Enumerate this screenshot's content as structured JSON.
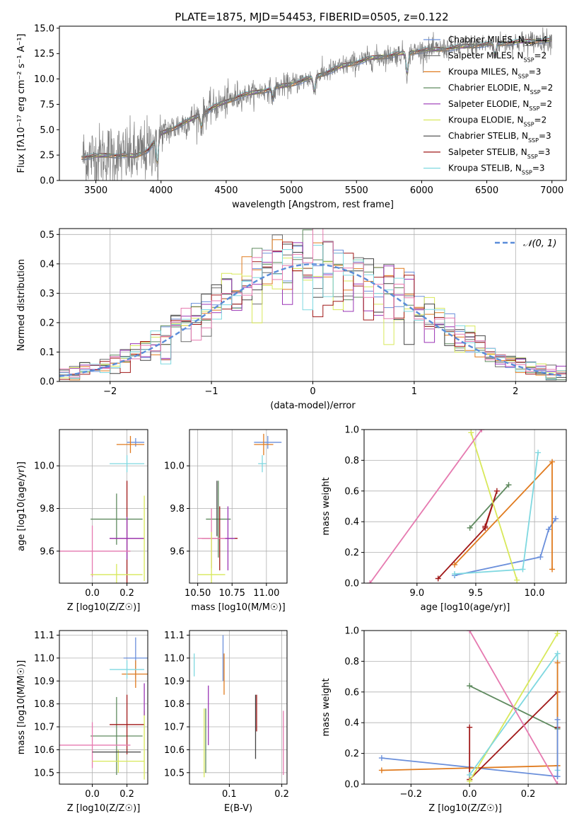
{
  "colors": {
    "chabrier_miles": "#6a8fdb",
    "salpeter_miles": "#6b6b6b",
    "kroupa_miles": "#e07b1f",
    "chabrier_elodie": "#5f8a5f",
    "salpeter_elodie": "#9a35b5",
    "kroupa_elodie": "#d8e85a",
    "chabrier_stelib": "#444444",
    "salpeter_stelib": "#a01818",
    "kroupa_stelib": "#7fd8e0",
    "pink": "#e67ab0",
    "normal_curve": "#5b8dd9"
  },
  "legend_spectrum": [
    {
      "base": "Chabrier MILES, N",
      "sub": "SSP",
      "tail": "=4",
      "color": "#6a8fdb"
    },
    {
      "base": "Salpeter MILES, N",
      "sub": "SSP",
      "tail": "=2",
      "color": "#6b6b6b"
    },
    {
      "base": "Kroupa MILES, N",
      "sub": "SSP",
      "tail": "=3",
      "color": "#e07b1f"
    },
    {
      "base": "Chabrier ELODIE, N",
      "sub": "SSP",
      "tail": "=2",
      "color": "#5f8a5f"
    },
    {
      "base": "Salpeter ELODIE, N",
      "sub": "SSP",
      "tail": "=2",
      "color": "#9a35b5"
    },
    {
      "base": "Kroupa ELODIE, N",
      "sub": "SSP",
      "tail": "=2",
      "color": "#d8e85a"
    },
    {
      "base": "Chabrier STELIB, N",
      "sub": "SSP",
      "tail": "=3",
      "color": "#444444"
    },
    {
      "base": "Salpeter STELIB, N",
      "sub": "SSP",
      "tail": "=3",
      "color": "#a01818"
    },
    {
      "base": "Kroupa STELIB, N",
      "sub": "SSP",
      "tail": "=3",
      "color": "#7fd8e0"
    }
  ],
  "chart_data": [
    {
      "id": "spectrum",
      "type": "line",
      "title": "PLATE=1875, MJD=54453, FIBERID=0505, z=0.122",
      "xlabel": "wavelength [Angstrom, rest frame]",
      "ylabel": "Flux [fλ10⁻¹⁷ erg cm⁻² s⁻¹ A⁻¹]",
      "xlim": [
        3220,
        7110
      ],
      "ylim": [
        0,
        15.2
      ],
      "xticks": [
        3500,
        4000,
        4500,
        5000,
        5500,
        6000,
        6500,
        7000
      ],
      "yticks": [
        0.0,
        2.5,
        5.0,
        7.5,
        10.0,
        12.5,
        15.0
      ],
      "continuum_x": [
        3400,
        3600,
        3800,
        3900,
        4000,
        4200,
        4400,
        4600,
        4800,
        5000,
        5200,
        5400,
        5600,
        5800,
        6000,
        6200,
        6400,
        6600,
        6800,
        7000
      ],
      "continuum_y": [
        2.3,
        2.5,
        2.4,
        3.0,
        4.6,
        5.8,
        7.2,
        8.3,
        8.9,
        9.5,
        10.3,
        11.3,
        12.0,
        12.4,
        12.8,
        13.0,
        13.3,
        13.5,
        13.7,
        13.8
      ],
      "features": [
        {
          "x": 3970,
          "depth": 2.5
        },
        {
          "x": 4310,
          "depth": 1.2
        },
        {
          "x": 4860,
          "depth": 1.0
        },
        {
          "x": 5175,
          "depth": 1.4
        },
        {
          "x": 5890,
          "depth": 2.0
        },
        {
          "x": 6563,
          "depth": 1.2
        }
      ]
    },
    {
      "id": "residuals",
      "type": "area",
      "xlabel": "(data-model)/error",
      "ylabel": "Normed distribution",
      "xlim": [
        -2.5,
        2.5
      ],
      "ylim": [
        0,
        0.52
      ],
      "xticks": [
        -2,
        -1,
        0,
        1,
        2
      ],
      "yticks": [
        0.0,
        0.1,
        0.2,
        0.3,
        0.4,
        0.5
      ],
      "bin_width": 0.1,
      "reference_curve": "N(0,1)",
      "legend_label": "𝒩(0, 1)",
      "grid": true,
      "legend_position": "top-right"
    },
    {
      "id": "age_vs_Z",
      "type": "scatter",
      "xlabel": "Z [log10(Z/Z☉)]",
      "ylabel": "age [log10(age/yr)]",
      "xlim": [
        -0.19,
        0.32
      ],
      "ylim": [
        9.45,
        10.17
      ],
      "xticks": [
        0.0,
        0.2
      ],
      "yticks": [
        9.6,
        9.8,
        10.0
      ],
      "points": [
        {
          "x": 0.25,
          "y": 10.11,
          "xerr": 0.05,
          "yerr": 0.02,
          "color": "#6a8fdb"
        },
        {
          "x": 0.22,
          "y": 10.1,
          "xerr": 0.08,
          "yerr": 0.04,
          "color": "#e07b1f"
        },
        {
          "x": 0.2,
          "y": 10.01,
          "xerr": 0.1,
          "yerr": 0.04,
          "color": "#7fd8e0"
        },
        {
          "x": 0.14,
          "y": 9.75,
          "xerr": 0.15,
          "yerr": 0.12,
          "color": "#5f8a5f"
        },
        {
          "x": 0.2,
          "y": 9.66,
          "xerr": 0.1,
          "yerr": 0.27,
          "color": "#a01818"
        },
        {
          "x": 0.2,
          "y": 9.66,
          "xerr": 0.1,
          "yerr": 0.1,
          "color": "#9a35b5"
        },
        {
          "x": 0.0,
          "y": 9.6,
          "xerr": 0.22,
          "yerr": 0.12,
          "color": "#e67ab0"
        },
        {
          "x": 0.14,
          "y": 9.49,
          "xerr": 0.15,
          "yerr": 0.05,
          "color": "#d8e85a"
        },
        {
          "x": 0.3,
          "y": 9.66,
          "xerr": 0.0,
          "yerr": 0.2,
          "color": "#d8e85a"
        }
      ]
    },
    {
      "id": "age_vs_mass",
      "type": "scatter",
      "xlabel": "mass [log10(M/M☉)]",
      "ylabel": "",
      "xlim": [
        10.44,
        11.15
      ],
      "ylim": [
        9.45,
        10.17
      ],
      "xticks": [
        10.5,
        10.75,
        11.0
      ],
      "yticks": [
        9.6,
        9.8,
        10.0
      ],
      "points": [
        {
          "x": 11.01,
          "y": 10.11,
          "xerr": 0.1,
          "yerr": 0.03,
          "color": "#6a8fdb"
        },
        {
          "x": 10.98,
          "y": 10.1,
          "xerr": 0.07,
          "yerr": 0.05,
          "color": "#e07b1f"
        },
        {
          "x": 10.97,
          "y": 10.01,
          "xerr": 0.03,
          "yerr": 0.04,
          "color": "#7fd8e0"
        },
        {
          "x": 10.65,
          "y": 9.75,
          "xerr": 0.09,
          "yerr": 0.18,
          "color": "#5f8a5f"
        },
        {
          "x": 10.66,
          "y": 9.66,
          "xerr": 0.13,
          "yerr": 0.15,
          "color": "#a01818"
        },
        {
          "x": 10.72,
          "y": 9.66,
          "xerr": 0.05,
          "yerr": 0.15,
          "color": "#9a35b5"
        },
        {
          "x": 10.6,
          "y": 9.66,
          "xerr": 0.1,
          "yerr": 0.14,
          "color": "#e67ab0"
        },
        {
          "x": 10.6,
          "y": 9.49,
          "xerr": 0.1,
          "yerr": 0.2,
          "color": "#d8e85a"
        },
        {
          "x": 10.64,
          "y": 9.8,
          "xerr": 0.0,
          "yerr": 0.13,
          "color": "#444444"
        }
      ]
    },
    {
      "id": "weight_vs_age",
      "type": "line",
      "xlabel": "age [log10(age/yr)]",
      "ylabel": "mass weight",
      "xlim": [
        8.55,
        10.27
      ],
      "ylim": [
        0,
        1.0
      ],
      "xticks": [
        9.0,
        9.5,
        10.0
      ],
      "yticks": [
        0.0,
        0.2,
        0.4,
        0.6,
        0.8,
        1.0
      ],
      "series": [
        {
          "color": "#6a8fdb",
          "x": [
            9.32,
            10.05,
            10.12,
            10.18
          ],
          "y": [
            0.05,
            0.17,
            0.35,
            0.42
          ]
        },
        {
          "color": "#e07b1f",
          "x": [
            9.32,
            10.15,
            10.15
          ],
          "y": [
            0.12,
            0.79,
            0.09
          ]
        },
        {
          "color": "#5f8a5f",
          "x": [
            9.45,
            9.78
          ],
          "y": [
            0.36,
            0.64
          ]
        },
        {
          "color": "#a01818",
          "x": [
            9.18,
            9.58,
            9.68,
            9.58
          ],
          "y": [
            0.03,
            0.36,
            0.6,
            0.37
          ]
        },
        {
          "color": "#d8e85a",
          "x": [
            9.46,
            9.85
          ],
          "y": [
            0.98,
            0.02
          ]
        },
        {
          "color": "#7fd8e0",
          "x": [
            9.32,
            9.9,
            10.03
          ],
          "y": [
            0.06,
            0.09,
            0.85
          ]
        },
        {
          "color": "#e67ab0",
          "x": [
            8.6,
            9.55
          ],
          "y": [
            0.0,
            1.0
          ]
        }
      ]
    },
    {
      "id": "mass_vs_Z",
      "type": "scatter",
      "xlabel": "Z [log10(Z/Z☉)]",
      "ylabel": "mass [log10(M/M☉)]",
      "xlim": [
        -0.19,
        0.32
      ],
      "ylim": [
        10.45,
        11.12
      ],
      "xticks": [
        0.0,
        0.2
      ],
      "yticks": [
        10.5,
        10.6,
        10.7,
        10.8,
        10.9,
        11.0,
        11.1
      ],
      "points": [
        {
          "x": 0.25,
          "y": 11.0,
          "xerr": 0.07,
          "yerr": 0.09,
          "color": "#6a8fdb"
        },
        {
          "x": 0.25,
          "y": 10.93,
          "xerr": 0.08,
          "yerr": 0.06,
          "color": "#e07b1f"
        },
        {
          "x": 0.2,
          "y": 10.95,
          "xerr": 0.1,
          "yerr": 0.04,
          "color": "#7fd8e0"
        },
        {
          "x": 0.14,
          "y": 10.66,
          "xerr": 0.15,
          "yerr": 0.17,
          "color": "#5f8a5f"
        },
        {
          "x": 0.2,
          "y": 10.71,
          "xerr": 0.1,
          "yerr": 0.13,
          "color": "#a01818"
        },
        {
          "x": 0.0,
          "y": 10.62,
          "xerr": 0.22,
          "yerr": 0.1,
          "color": "#e67ab0"
        },
        {
          "x": 0.15,
          "y": 10.55,
          "xerr": 0.15,
          "yerr": 0.05,
          "color": "#d8e85a"
        },
        {
          "x": 0.3,
          "y": 10.62,
          "xerr": 0.0,
          "yerr": 0.15,
          "color": "#d8e85a"
        },
        {
          "x": 0.14,
          "y": 10.59,
          "xerr": 0.14,
          "yerr": 0.0,
          "color": "#444444"
        },
        {
          "x": 0.3,
          "y": 10.82,
          "xerr": 0.0,
          "yerr": 0.07,
          "color": "#9a35b5"
        }
      ]
    },
    {
      "id": "mass_vs_ebv",
      "type": "scatter",
      "xlabel": "E(B-V)",
      "ylabel": "",
      "xlim": [
        0.024,
        0.21
      ],
      "ylim": [
        10.45,
        11.12
      ],
      "xticks": [
        0.1,
        0.2
      ],
      "yticks": [
        10.5,
        10.6,
        10.7,
        10.8,
        10.9,
        11.0,
        11.1
      ],
      "points": [
        {
          "x": 0.088,
          "y": 11.0,
          "xerr": 0,
          "yerr": 0.1,
          "color": "#6a8fdb"
        },
        {
          "x": 0.09,
          "y": 10.93,
          "xerr": 0,
          "yerr": 0.09,
          "color": "#e07b1f"
        },
        {
          "x": 0.033,
          "y": 10.97,
          "xerr": 0,
          "yerr": 0.05,
          "color": "#7fd8e0"
        },
        {
          "x": 0.06,
          "y": 10.75,
          "xerr": 0,
          "yerr": 0.13,
          "color": "#9a35b5"
        },
        {
          "x": 0.055,
          "y": 10.64,
          "xerr": 0,
          "yerr": 0.14,
          "color": "#5f8a5f"
        },
        {
          "x": 0.052,
          "y": 10.63,
          "xerr": 0,
          "yerr": 0.15,
          "color": "#d8e85a"
        },
        {
          "x": 0.15,
          "y": 10.7,
          "xerr": 0,
          "yerr": 0.14,
          "color": "#444444"
        },
        {
          "x": 0.152,
          "y": 10.76,
          "xerr": 0,
          "yerr": 0.08,
          "color": "#a01818"
        },
        {
          "x": 0.203,
          "y": 10.63,
          "xerr": 0,
          "yerr": 0.14,
          "color": "#e67ab0"
        }
      ]
    },
    {
      "id": "weight_vs_Z",
      "type": "line",
      "xlabel": "Z [log10(Z/Z☉)]",
      "ylabel": "mass weight",
      "xlim": [
        -0.36,
        0.33
      ],
      "ylim": [
        0,
        1.0
      ],
      "xticks": [
        -0.2,
        0.0,
        0.2
      ],
      "yticks": [
        0.0,
        0.2,
        0.4,
        0.6,
        0.8,
        1.0
      ],
      "series": [
        {
          "color": "#6a8fdb",
          "x": [
            -0.3,
            0.0,
            0.3
          ],
          "y": [
            0.17,
            0.11,
            0.05
          ]
        },
        {
          "color": "#e07b1f",
          "x": [
            -0.3,
            0.3
          ],
          "y": [
            0.09,
            0.12
          ]
        },
        {
          "color": "#5f8a5f",
          "x": [
            0.0,
            0.3
          ],
          "y": [
            0.64,
            0.36
          ]
        },
        {
          "color": "#a01818",
          "x": [
            0.0,
            0.0,
            0.3,
            0.3
          ],
          "y": [
            0.37,
            0.03,
            0.6,
            0.37
          ]
        },
        {
          "color": "#d8e85a",
          "x": [
            0.0,
            0.3
          ],
          "y": [
            0.02,
            0.98
          ]
        },
        {
          "color": "#7fd8e0",
          "x": [
            0.0,
            0.3,
            0.3
          ],
          "y": [
            0.06,
            0.85,
            0.09
          ]
        },
        {
          "color": "#e67ab0",
          "x": [
            0.0,
            0.3
          ],
          "y": [
            1.0,
            0.0
          ]
        },
        {
          "color": "#e07b1f",
          "x": [
            0.3,
            0.3
          ],
          "y": [
            0.79,
            0.12
          ]
        },
        {
          "color": "#6a8fdb",
          "x": [
            0.3,
            0.3
          ],
          "y": [
            0.42,
            0.05
          ]
        }
      ]
    }
  ]
}
